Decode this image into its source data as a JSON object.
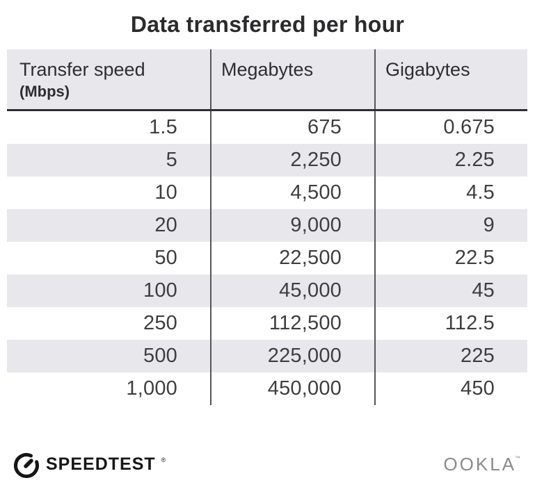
{
  "title": "Data transferred per hour",
  "table": {
    "columns": [
      {
        "label": "Transfer speed",
        "sublabel": "(Mbps)"
      },
      {
        "label": "Megabytes",
        "sublabel": ""
      },
      {
        "label": "Gigabytes",
        "sublabel": ""
      }
    ],
    "rows": [
      [
        "1.5",
        "675",
        "0.675"
      ],
      [
        "5",
        "2,250",
        "2.25"
      ],
      [
        "10",
        "4,500",
        "4.5"
      ],
      [
        "20",
        "9,000",
        "9"
      ],
      [
        "50",
        "22,500",
        "22.5"
      ],
      [
        "100",
        "45,000",
        "45"
      ],
      [
        "250",
        "112,500",
        "112.5"
      ],
      [
        "500",
        "225,000",
        "225"
      ],
      [
        "1,000",
        "450,000",
        "450"
      ]
    ]
  },
  "chart_data": {
    "type": "table",
    "title": "Data transferred per hour",
    "columns": [
      "Transfer speed (Mbps)",
      "Megabytes",
      "Gigabytes"
    ],
    "rows": [
      [
        1.5,
        675,
        0.675
      ],
      [
        5,
        2250,
        2.25
      ],
      [
        10,
        4500,
        4.5
      ],
      [
        20,
        9000,
        9
      ],
      [
        50,
        22500,
        22.5
      ],
      [
        100,
        45000,
        45
      ],
      [
        250,
        112500,
        112.5
      ],
      [
        500,
        225000,
        225
      ],
      [
        1000,
        450000,
        450
      ]
    ]
  },
  "footer": {
    "brand": "SPEEDTEST",
    "brand_mark": "®",
    "company": "OOKLA",
    "company_mark": "™",
    "icon": "speedtest-gauge-icon"
  },
  "colors": {
    "row_alt": "#e8e7ec",
    "header_bg": "#e8e7ec",
    "divider": "#55555a",
    "header_border": "#2f2f31",
    "title_text": "#2b2b2d",
    "body_text": "#3e3e40",
    "brand_text": "#161616",
    "company_text": "#8b8b8f"
  }
}
